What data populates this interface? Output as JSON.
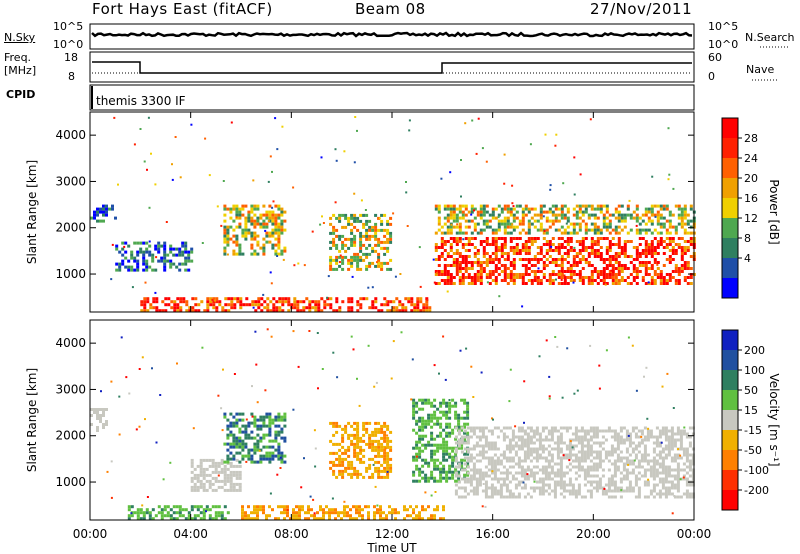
{
  "header": {
    "station": "Fort Hays East (fitACF)",
    "beam": "Beam 08",
    "date": "27/Nov/2011"
  },
  "noise": {
    "left_label": "N.Sky",
    "right_label": "N.Search",
    "left_ticks": [
      "10^5",
      "10^0"
    ],
    "right_ticks": [
      "10^5",
      "10^0"
    ]
  },
  "freq": {
    "left_label_1": "Freq.",
    "left_label_2": "[MHz]",
    "left_ticks": [
      "18",
      "8"
    ],
    "right_label": "Nave",
    "right_ticks": [
      "60",
      "0"
    ]
  },
  "cpid": {
    "label": "CPID",
    "program": "themis 3300 IF"
  },
  "axes": {
    "ylabel": "Slant Range [km]",
    "yticks": [
      "4000",
      "3000",
      "2000",
      "1000"
    ],
    "xlabel": "Time UT",
    "xticks": [
      "00:00",
      "04:00",
      "08:00",
      "12:00",
      "16:00",
      "20:00",
      "00:00"
    ]
  },
  "power_scale": {
    "label": "Power [dB]",
    "ticks": [
      "28",
      "24",
      "20",
      "16",
      "12",
      "8",
      "4"
    ],
    "colors": [
      "#0000ff",
      "#1f4fa8",
      "#2f7f60",
      "#4fa850",
      "#f0d000",
      "#f0a000",
      "#ff6000",
      "#ff2000",
      "#ff0000"
    ]
  },
  "velocity_scale": {
    "label": "Velocity [m s⁻¹]",
    "ticks": [
      "200",
      "100",
      "50",
      "15",
      "-15",
      "-50",
      "-100",
      "-200"
    ],
    "colors": [
      "#1020c0",
      "#2050a0",
      "#2f7f60",
      "#60c040",
      "#c8c8c0",
      "#f0b000",
      "#ff8000",
      "#ff3000",
      "#ff0000"
    ]
  },
  "chart_data": [
    {
      "type": "heatmap",
      "title": "Power",
      "x_range": [
        "00:00",
        "24:00"
      ],
      "ylim": [
        180,
        4500
      ],
      "regions": [
        {
          "t": [
            0.0,
            1.0
          ],
          "r": [
            2150,
            2500
          ],
          "level": "low"
        },
        {
          "t": [
            1.0,
            4.0
          ],
          "r": [
            1100,
            1700
          ],
          "level": "low"
        },
        {
          "t": [
            5.3,
            7.8
          ],
          "r": [
            1400,
            2500
          ],
          "level": "medium"
        },
        {
          "t": [
            9.5,
            12.0
          ],
          "r": [
            1100,
            2300
          ],
          "level": "medium"
        },
        {
          "t": [
            2.0,
            13.5
          ],
          "r": [
            200,
            500
          ],
          "level": "high"
        },
        {
          "t": [
            13.7,
            24.0
          ],
          "r": [
            800,
            1800
          ],
          "level": "high"
        },
        {
          "t": [
            13.7,
            24.0
          ],
          "r": [
            1900,
            2500
          ],
          "level": "medium"
        }
      ]
    },
    {
      "type": "heatmap",
      "title": "Velocity",
      "x_range": [
        "00:00",
        "24:00"
      ],
      "ylim": [
        180,
        4500
      ],
      "regions": [
        {
          "t": [
            0.0,
            0.6
          ],
          "r": [
            2100,
            2600
          ],
          "v": "ground"
        },
        {
          "t": [
            4.0,
            6.0
          ],
          "r": [
            800,
            1500
          ],
          "v": "ground"
        },
        {
          "t": [
            5.3,
            7.8
          ],
          "r": [
            1400,
            2500
          ],
          "v": "50..100"
        },
        {
          "t": [
            9.5,
            12.0
          ],
          "r": [
            1100,
            2300
          ],
          "v": "-50..-15"
        },
        {
          "t": [
            1.5,
            5.5
          ],
          "r": [
            200,
            500
          ],
          "v": "15..50"
        },
        {
          "t": [
            6.0,
            14.0
          ],
          "r": [
            200,
            500
          ],
          "v": "-50..-15"
        },
        {
          "t": [
            12.8,
            15.0
          ],
          "r": [
            1000,
            2800
          ],
          "v": "15..50"
        },
        {
          "t": [
            14.5,
            24.0
          ],
          "r": [
            700,
            2200
          ],
          "v": "ground"
        }
      ]
    }
  ]
}
